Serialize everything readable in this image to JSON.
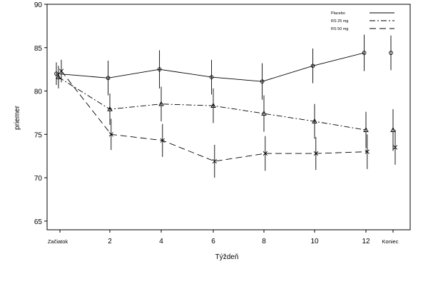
{
  "chart_data": {
    "type": "line",
    "title": "",
    "xlabel": "Týždeň",
    "ylabel": "priemer",
    "ylim": [
      64,
      90
    ],
    "yticks": [
      65,
      70,
      75,
      80,
      85,
      90
    ],
    "x_tick_labels": [
      "Začiatok",
      "2",
      "4",
      "6",
      "8",
      "10",
      "12",
      "Koniec"
    ],
    "x_tick_values": [
      0,
      2,
      4,
      6,
      8,
      10,
      12,
      13
    ],
    "grid": false,
    "legend_position": "top-right",
    "series": [
      {
        "name": "Placebo",
        "line_style": "solid",
        "marker": "circle",
        "x": [
          0,
          2,
          4,
          6,
          8,
          10,
          12
        ],
        "y": [
          82.0,
          81.5,
          82.5,
          81.6,
          81.1,
          82.9,
          84.4
        ],
        "error": [
          1.3,
          2.0,
          2.2,
          2.0,
          2.1,
          2.0,
          2.1
        ],
        "endpoint": {
          "x": 13,
          "y": 84.4,
          "error": 2.0
        }
      },
      {
        "name": "RS 25 mg",
        "line_style": "dashdot",
        "marker": "triangle",
        "x": [
          0,
          2,
          4,
          6,
          8,
          10,
          12
        ],
        "y": [
          81.6,
          77.9,
          78.5,
          78.3,
          77.4,
          76.5,
          75.5
        ],
        "error": [
          1.3,
          1.8,
          2.0,
          2.0,
          2.1,
          2.0,
          2.1
        ],
        "endpoint": {
          "x": 13,
          "y": 75.5,
          "error": 2.4
        }
      },
      {
        "name": "RS 50 mg",
        "line_style": "dashed",
        "marker": "x",
        "x": [
          0,
          2,
          4,
          6,
          8,
          10,
          12
        ],
        "y": [
          82.3,
          75.0,
          74.3,
          71.9,
          72.8,
          72.8,
          73.0
        ],
        "error": [
          1.3,
          1.8,
          1.9,
          1.9,
          2.0,
          1.9,
          2.0
        ],
        "endpoint": {
          "x": 13,
          "y": 73.5,
          "error": 2.0
        }
      }
    ]
  }
}
